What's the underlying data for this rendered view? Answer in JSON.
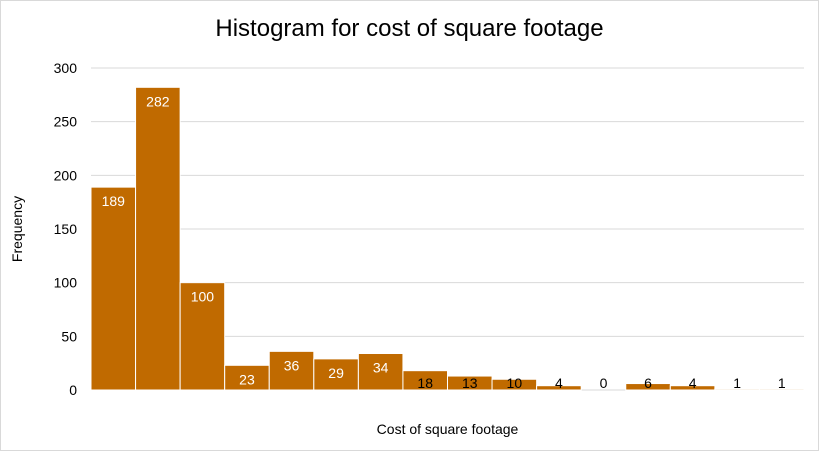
{
  "chart_data": {
    "type": "bar",
    "title": "Histogram for cost of square footage",
    "xlabel": "Cost of square footage",
    "ylabel": "Frequency",
    "ylim": [
      0,
      300
    ],
    "yticks": [
      0,
      50,
      100,
      150,
      200,
      250,
      300
    ],
    "values": [
      189,
      282,
      100,
      23,
      36,
      29,
      34,
      18,
      13,
      10,
      4,
      0,
      6,
      4,
      1,
      1
    ],
    "grid": true,
    "legend": "none",
    "colors": {
      "bar": "#c06a00",
      "bar_edge": "#ffffff",
      "grid": "#d9d9d9",
      "label_inside": "#ffffff",
      "label_outside": "#000000"
    }
  }
}
